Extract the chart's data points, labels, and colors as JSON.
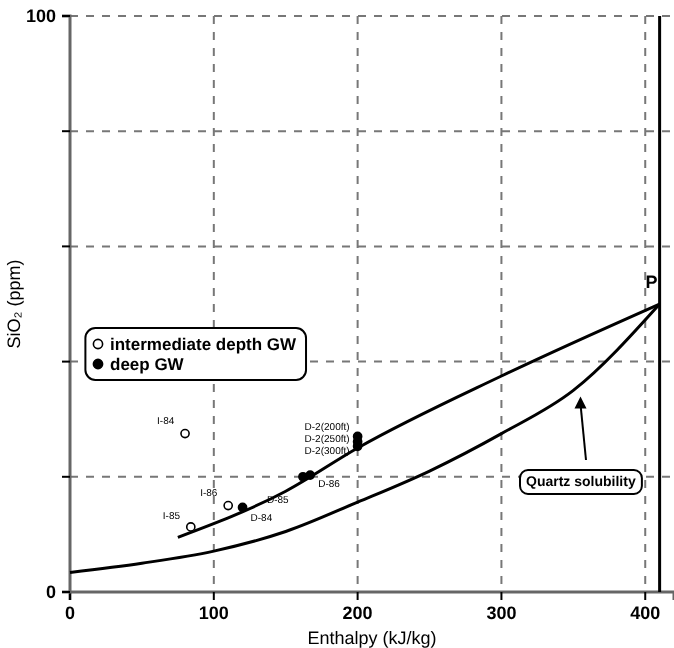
{
  "chart_data": {
    "type": "scatter",
    "xlabel": "Enthalpy (kJ/kg)",
    "ylabel": "SiO₂ (ppm)",
    "xlim": [
      0,
      420
    ],
    "ylim": [
      0,
      100
    ],
    "xticks": [
      0,
      100,
      200,
      300,
      400
    ],
    "yticks": [
      0,
      {
        "value": 20,
        "label": null
      },
      {
        "value": 40,
        "label": null
      },
      {
        "value": 60,
        "label": null
      },
      {
        "value": 80,
        "label": null
      },
      100
    ],
    "grid": true,
    "legend": "left",
    "marker": "circle",
    "series": [
      {
        "name": "intermediate depth GW",
        "color": "#ffffff",
        "x": [
          80,
          110,
          84
        ],
        "values": [
          27.5,
          15,
          11.3
        ]
      },
      {
        "name": "deep GW",
        "color": "#000000",
        "x": [
          120,
          162,
          167,
          200,
          200,
          200
        ],
        "values": [
          14.7,
          20,
          20.3,
          27,
          26.1,
          25.3
        ]
      },
      {
        "type": "line",
        "color": "#000000",
        "line_style": "solid",
        "marker": "none",
        "x": [
          75,
          150,
          200,
          300,
          410
        ],
        "values": [
          9.5,
          17.5,
          25,
          37.5,
          50
        ]
      },
      {
        "type": "line",
        "color": "#000000",
        "line_style": "solid",
        "marker": "none",
        "x": [
          0,
          50,
          100,
          150,
          200,
          250,
          300,
          350,
          410
        ],
        "values": [
          3.4,
          5,
          7.1,
          10.5,
          15.6,
          21,
          27.5,
          35,
          50
        ]
      }
    ],
    "ref_lines": [
      {
        "axis": "x",
        "value": 410,
        "color": "#000000"
      }
    ],
    "annotations": [
      {
        "text": "I-84",
        "x": 80,
        "y": 27.5
      },
      {
        "text": "I-86",
        "x": 110,
        "y": 15
      },
      {
        "text": "I-85",
        "x": 84,
        "y": 11.3
      },
      {
        "text": "D-84",
        "x": 120,
        "y": 14.7
      },
      {
        "text": "D-85",
        "x": 162,
        "y": 20
      },
      {
        "text": "D-86",
        "x": 167,
        "y": 20.3
      },
      {
        "text": "D-2(200ft)",
        "x": 200,
        "y": 27
      },
      {
        "text": "D-2(250ft)",
        "x": 200,
        "y": 26.1
      },
      {
        "text": "D-2(300ft)",
        "x": 200,
        "y": 25.3
      },
      {
        "text": "P",
        "x": 410,
        "y": 50
      },
      {
        "text": "Quartz solubility",
        "x": 355,
        "y": 35
      }
    ]
  }
}
